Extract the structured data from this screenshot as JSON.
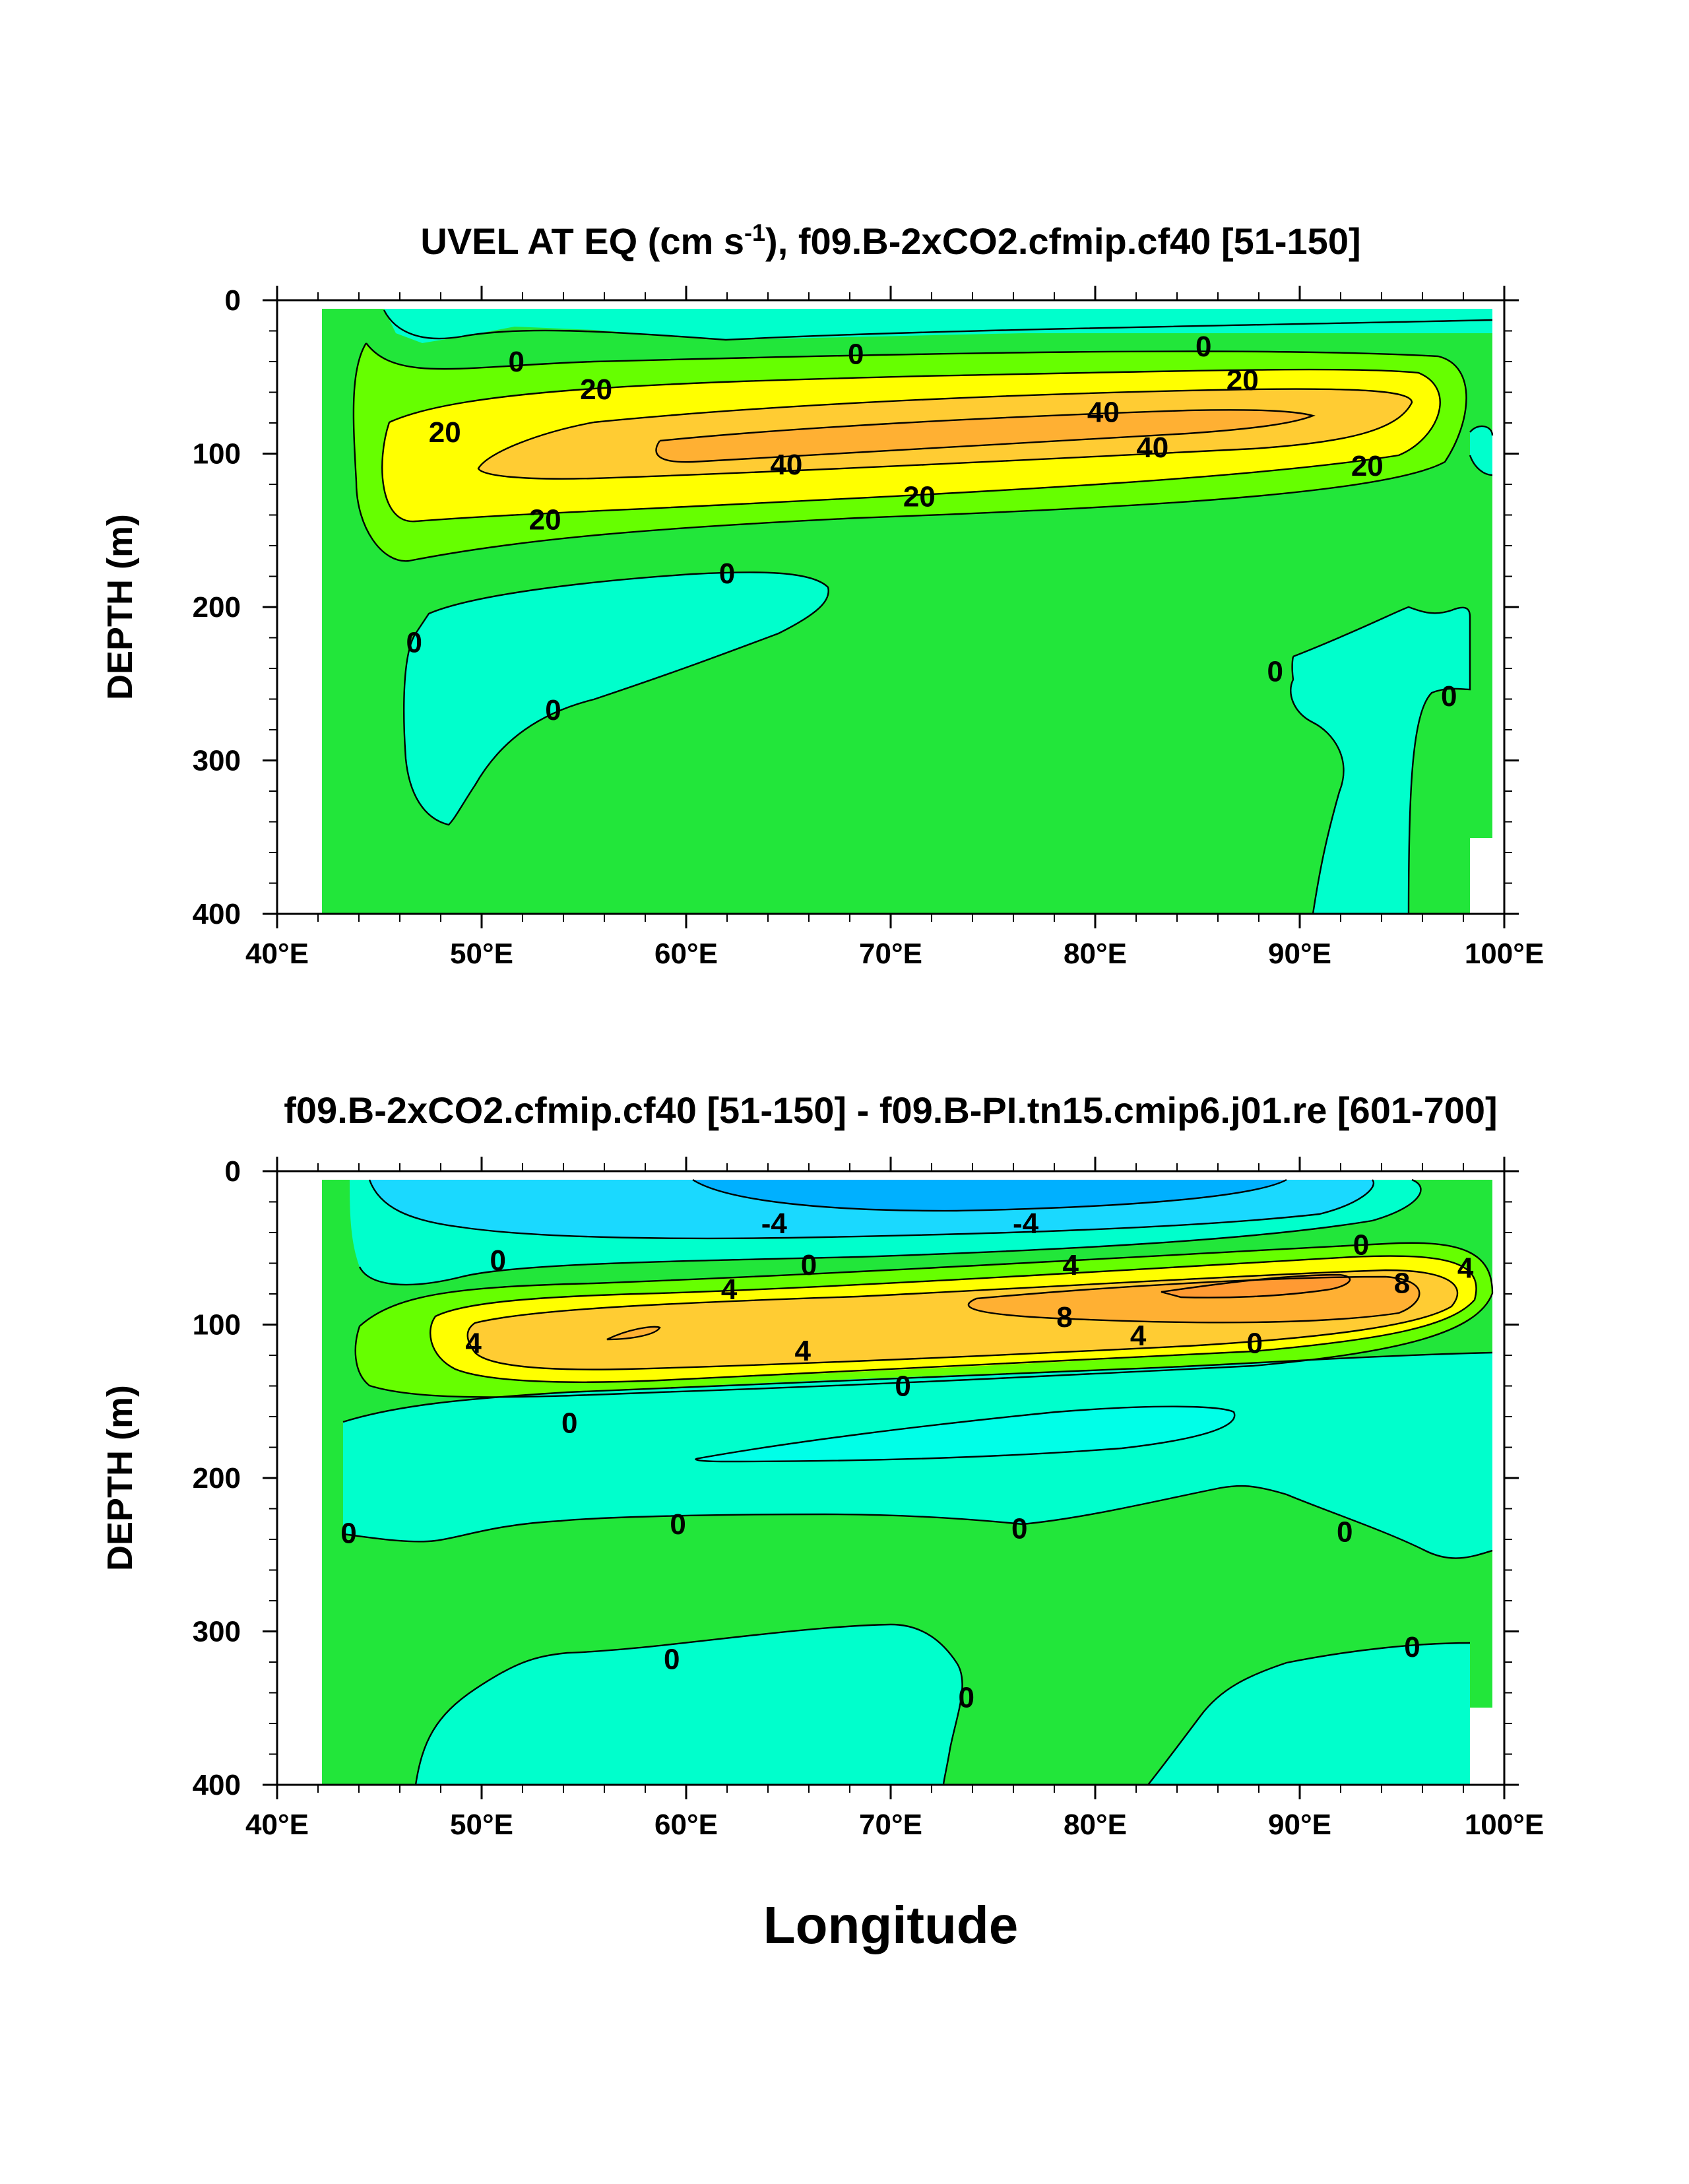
{
  "colors": {
    "bg_green": "#22e63a",
    "neg_cyan": "#00ffcc",
    "neg_cyan2": "#00ffe8",
    "neg_lightblue": "#1ad9ff",
    "neg_blue": "#00b0ff",
    "pos_lime": "#66ff00",
    "pos_yellow": "#ffff00",
    "pos_gold": "#ffcc33",
    "pos_orange": "#ffb033",
    "pos_deep": "#ff9a33"
  },
  "chart_data": [
    {
      "type": "contour",
      "title_main": "UVEL AT EQ (cm s",
      "title_sup": "-1",
      "title_rest": "), f09.B-2xCO2.cfmip.cf40 [51-150]",
      "ylabel": "DEPTH (m)",
      "xlabel": "",
      "xlim": [
        40,
        100
      ],
      "ylim": [
        400,
        0
      ],
      "xticks": [
        "40°E",
        "50°E",
        "60°E",
        "70°E",
        "80°E",
        "90°E",
        "100°E"
      ],
      "yticks": [
        "0",
        "100",
        "200",
        "300",
        "400"
      ],
      "contour_levels": [
        -10,
        0,
        10,
        20,
        30,
        40
      ],
      "contour_labels": [
        {
          "text": "0",
          "lon": 51.7,
          "depth": 40
        },
        {
          "text": "0",
          "lon": 68.3,
          "depth": 35
        },
        {
          "text": "0",
          "lon": 85.3,
          "depth": 30
        },
        {
          "text": "20",
          "lon": 55.6,
          "depth": 58
        },
        {
          "text": "20",
          "lon": 87.2,
          "depth": 52
        },
        {
          "text": "20",
          "lon": 48.2,
          "depth": 86
        },
        {
          "text": "40",
          "lon": 80.4,
          "depth": 73
        },
        {
          "text": "40",
          "lon": 82.8,
          "depth": 96
        },
        {
          "text": "40",
          "lon": 64.9,
          "depth": 107
        },
        {
          "text": "20",
          "lon": 93.3,
          "depth": 108
        },
        {
          "text": "20",
          "lon": 71.4,
          "depth": 128
        },
        {
          "text": "20",
          "lon": 53.1,
          "depth": 143
        },
        {
          "text": "0",
          "lon": 62.0,
          "depth": 178
        },
        {
          "text": "0",
          "lon": 46.7,
          "depth": 223
        },
        {
          "text": "0",
          "lon": 53.5,
          "depth": 267
        },
        {
          "text": "0",
          "lon": 88.8,
          "depth": 242
        },
        {
          "text": "0",
          "lon": 97.3,
          "depth": 258
        }
      ]
    },
    {
      "type": "contour",
      "title_main": "f09.B-2xCO2.cfmip.cf40 [51-150] - f09.B-PI.tn15.cmip6.j01.re [601-700]",
      "title_sup": "",
      "title_rest": "",
      "ylabel": "DEPTH (m)",
      "xlabel": "Longitude",
      "xlim": [
        40,
        100
      ],
      "ylim": [
        400,
        0
      ],
      "xticks": [
        "40°E",
        "50°E",
        "60°E",
        "70°E",
        "80°E",
        "90°E",
        "100°E"
      ],
      "yticks": [
        "0",
        "100",
        "200",
        "300",
        "400"
      ],
      "contour_levels": [
        -6,
        -4,
        -2,
        0,
        2,
        4,
        6,
        8,
        10
      ],
      "contour_labels": [
        {
          "text": "-4",
          "lon": 64.3,
          "depth": 34
        },
        {
          "text": "-4",
          "lon": 76.6,
          "depth": 34
        },
        {
          "text": "0",
          "lon": 93.0,
          "depth": 48
        },
        {
          "text": "4",
          "lon": 78.8,
          "depth": 61
        },
        {
          "text": "0",
          "lon": 50.8,
          "depth": 58
        },
        {
          "text": "0",
          "lon": 66.0,
          "depth": 61
        },
        {
          "text": "4",
          "lon": 98.1,
          "depth": 63
        },
        {
          "text": "8",
          "lon": 95.0,
          "depth": 73
        },
        {
          "text": "4",
          "lon": 62.1,
          "depth": 77
        },
        {
          "text": "8",
          "lon": 78.5,
          "depth": 95
        },
        {
          "text": "4",
          "lon": 82.1,
          "depth": 107
        },
        {
          "text": "4",
          "lon": 49.6,
          "depth": 112
        },
        {
          "text": "0",
          "lon": 87.8,
          "depth": 112
        },
        {
          "text": "4",
          "lon": 65.7,
          "depth": 117
        },
        {
          "text": "0",
          "lon": 70.6,
          "depth": 140
        },
        {
          "text": "0",
          "lon": 54.3,
          "depth": 164
        },
        {
          "text": "0",
          "lon": 59.6,
          "depth": 230
        },
        {
          "text": "0",
          "lon": 76.3,
          "depth": 233
        },
        {
          "text": "0",
          "lon": 43.5,
          "depth": 236
        },
        {
          "text": "0",
          "lon": 92.2,
          "depth": 235
        },
        {
          "text": "0",
          "lon": 59.3,
          "depth": 318
        },
        {
          "text": "0",
          "lon": 95.5,
          "depth": 310
        },
        {
          "text": "0",
          "lon": 73.7,
          "depth": 343
        }
      ]
    }
  ]
}
